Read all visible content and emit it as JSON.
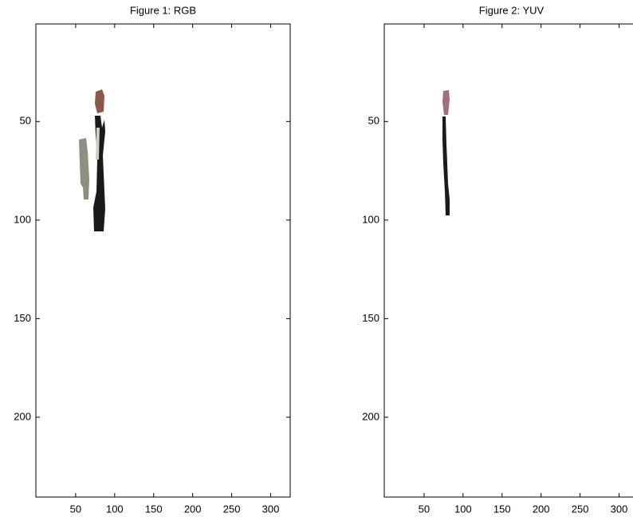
{
  "chart_data": [
    {
      "type": "image",
      "title": "Figure 1: RGB",
      "xlim": [
        -1,
        325
      ],
      "ylim": [
        0.5,
        240.5
      ],
      "y_reversed": true,
      "xticks": [
        50,
        100,
        150,
        200,
        250,
        300
      ],
      "yticks": [
        50,
        100,
        150,
        200
      ]
    },
    {
      "type": "image",
      "title": "Figure 2: YUV",
      "xlim": [
        -1,
        325
      ],
      "ylim": [
        0.5,
        240.5
      ],
      "y_reversed": true,
      "xticks": [
        50,
        100,
        150,
        200,
        250,
        300
      ],
      "yticks": [
        50,
        100,
        150,
        200
      ]
    }
  ]
}
